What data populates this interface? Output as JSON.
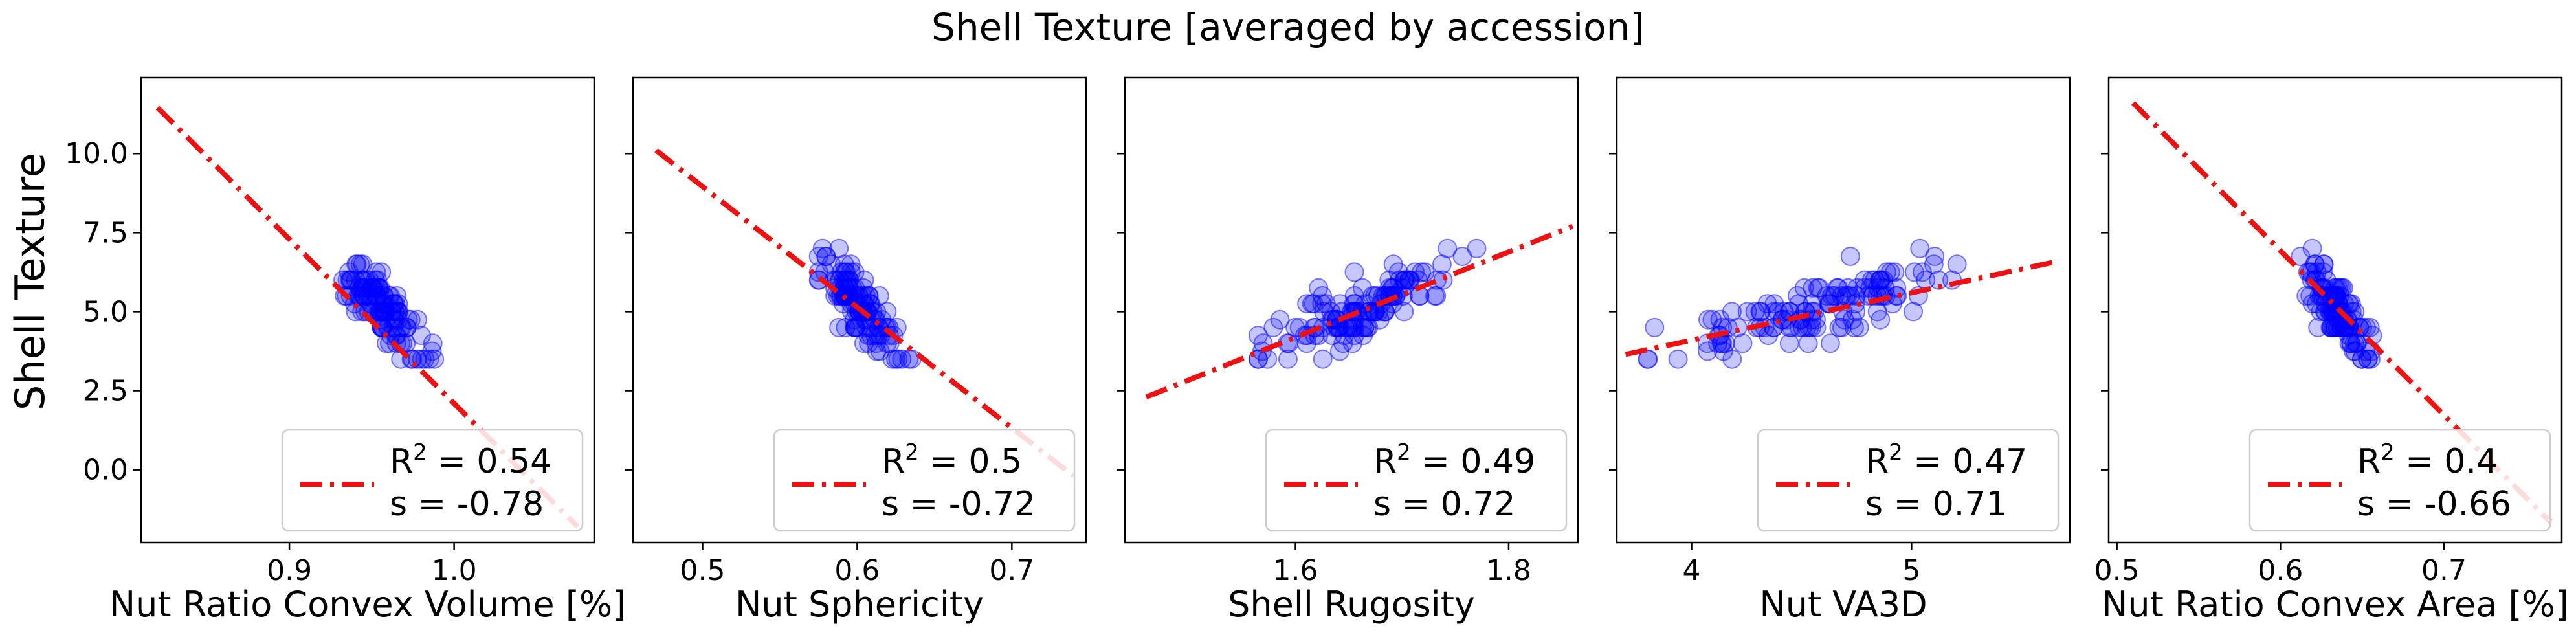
{
  "figure": {
    "title": "Shell Texture [averaged by accession]",
    "shared_ylabel": "Shell Texture"
  },
  "style": {
    "point_color": "#0000ff",
    "line_color": "#ee1111",
    "legend_border": "#cccccc"
  },
  "chart_data": [
    {
      "type": "scatter",
      "xlabel": "Nut Ratio Convex Volume [%]",
      "ylabel": "Shell Texture",
      "xlim": [
        0.81,
        1.085
      ],
      "ylim": [
        -2.3,
        12.4
      ],
      "xticks": [
        0.9,
        1.0
      ],
      "xtick_labels": [
        "0.9",
        "1.0"
      ],
      "yticks": [
        0.0,
        2.5,
        5.0,
        7.5,
        10.0
      ],
      "ytick_labels": [
        "0.0",
        "2.5",
        "5.0",
        "7.5",
        "10.0"
      ],
      "fit_line": {
        "x": [
          0.82,
          1.075
        ],
        "y": [
          11.45,
          -1.8
        ]
      },
      "legend": {
        "r2": "0.54",
        "s": "-0.78",
        "r2_label": "R",
        "r2_sup": "2",
        "r2_eq": " = ",
        "s_label": "s   = ",
        "position": "lower right"
      },
      "points": {
        "cx": 0.957,
        "sx": 0.013,
        "xmin": 0.918,
        "xmax": 0.993,
        "slope": -0.78,
        "n": 120,
        "seed": 11
      }
    },
    {
      "type": "scatter",
      "xlabel": "Nut Sphericity",
      "ylabel": "Shell Texture",
      "xlim": [
        0.455,
        0.748
      ],
      "ylim": [
        -2.3,
        12.4
      ],
      "xticks": [
        0.5,
        0.6,
        0.7
      ],
      "xtick_labels": [
        "0.5",
        "0.6",
        "0.7"
      ],
      "yticks": [
        0.0,
        2.5,
        5.0,
        7.5,
        10.0
      ],
      "ytick_labels": [
        "",
        "",
        "",
        "",
        ""
      ],
      "fit_line": {
        "x": [
          0.47,
          0.74
        ],
        "y": [
          10.1,
          -0.2
        ]
      },
      "legend": {
        "r2": "0.5",
        "s": "-0.72",
        "r2_label": "R",
        "r2_sup": "2",
        "r2_eq": " = ",
        "s_label": "s   = ",
        "position": "lower right"
      },
      "points": {
        "cx": 0.602,
        "sx": 0.013,
        "xmin": 0.575,
        "xmax": 0.64,
        "slope": -0.72,
        "n": 120,
        "seed": 23
      }
    },
    {
      "type": "scatter",
      "xlabel": "Shell Rugosity",
      "ylabel": "Shell Texture",
      "xlim": [
        1.44,
        1.865
      ],
      "ylim": [
        -2.3,
        12.4
      ],
      "xticks": [
        1.6,
        1.8
      ],
      "xtick_labels": [
        "1.6",
        "1.8"
      ],
      "yticks": [
        0.0,
        2.5,
        5.0,
        7.5,
        10.0
      ],
      "ytick_labels": [
        "",
        "",
        "",
        "",
        ""
      ],
      "fit_line": {
        "x": [
          1.46,
          1.86
        ],
        "y": [
          2.3,
          7.7
        ]
      },
      "legend": {
        "r2": "0.49",
        "s": "0.72",
        "r2_label": "R",
        "r2_sup": "2",
        "r2_eq": " = ",
        "s_label": "s   = ",
        "position": "lower right"
      },
      "points": {
        "cx": 1.665,
        "sx": 0.045,
        "xmin": 1.565,
        "xmax": 1.77,
        "slope": 0.72,
        "n": 130,
        "seed": 37
      }
    },
    {
      "type": "scatter",
      "xlabel": "Nut VA3D",
      "ylabel": "Shell Texture",
      "xlim": [
        3.66,
        5.72
      ],
      "ylim": [
        -2.3,
        12.4
      ],
      "xticks": [
        4,
        5
      ],
      "xtick_labels": [
        "4",
        "5"
      ],
      "yticks": [
        0.0,
        2.5,
        5.0,
        7.5,
        10.0
      ],
      "ytick_labels": [
        "",
        "",
        "",
        "",
        ""
      ],
      "fit_line": {
        "x": [
          3.7,
          5.67
        ],
        "y": [
          3.65,
          6.6
        ]
      },
      "legend": {
        "r2": "0.47",
        "s": "0.71",
        "r2_label": "R",
        "r2_sup": "2",
        "r2_eq": " = ",
        "s_label": "s   = ",
        "position": "lower right"
      },
      "points": {
        "cx": 4.55,
        "sx": 0.34,
        "xmin": 3.8,
        "xmax": 5.55,
        "slope": 0.71,
        "n": 130,
        "seed": 53
      }
    },
    {
      "type": "scatter",
      "xlabel": "Nut Ratio Convex Area [%]",
      "ylabel": "Shell Texture",
      "xlim": [
        0.495,
        0.772
      ],
      "ylim": [
        -2.3,
        12.4
      ],
      "xticks": [
        0.5,
        0.6,
        0.7
      ],
      "xtick_labels": [
        "0.5",
        "0.6",
        "0.7"
      ],
      "yticks": [
        0.0,
        2.5,
        5.0,
        7.5,
        10.0
      ],
      "ytick_labels": [
        "",
        "",
        "",
        "",
        ""
      ],
      "fit_line": {
        "x": [
          0.51,
          0.765
        ],
        "y": [
          11.6,
          -1.65
        ]
      },
      "legend": {
        "r2": "0.4",
        "s": "-0.66",
        "r2_label": "R",
        "r2_sup": "2",
        "r2_eq": " = ",
        "s_label": "s   = ",
        "position": "lower right"
      },
      "points": {
        "cx": 0.635,
        "sx": 0.009,
        "xmin": 0.61,
        "xmax": 0.66,
        "slope": -0.66,
        "n": 120,
        "seed": 71
      }
    }
  ]
}
